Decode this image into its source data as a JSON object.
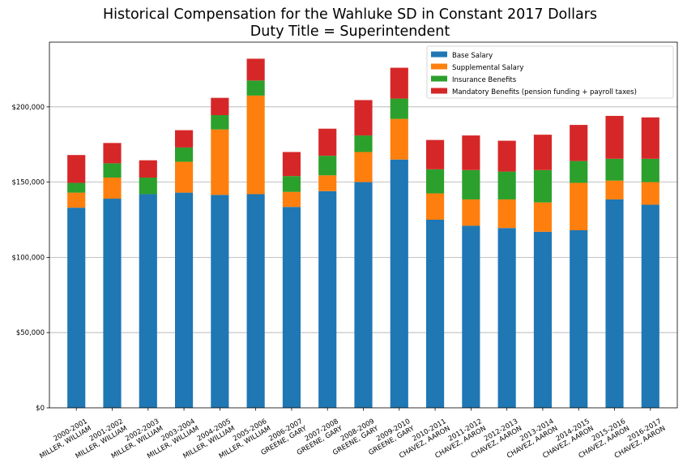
{
  "chart_data": {
    "type": "bar",
    "stacked": true,
    "title": "Historical Compensation for the Wahluke SD in Constant 2017 Dollars",
    "subtitle": "Duty Title = Superintendent",
    "xlabel": "",
    "ylabel": "",
    "ylim": [
      0,
      243000
    ],
    "yticks": [
      0,
      50000,
      100000,
      150000,
      200000
    ],
    "ytick_labels": [
      "$0",
      "$50,000",
      "$100,000",
      "$150,000",
      "$200,000"
    ],
    "grid": "horizontal",
    "legend_position": "top-right",
    "categories": [
      {
        "year": "2000-2001",
        "name": "MILLER, WILLIAM"
      },
      {
        "year": "2001-2002",
        "name": "MILLER, WILLIAM"
      },
      {
        "year": "2002-2003",
        "name": "MILLER, WILLIAM"
      },
      {
        "year": "2003-2004",
        "name": "MILLER, WILLIAM"
      },
      {
        "year": "2004-2005",
        "name": "MILLER, WILLIAM"
      },
      {
        "year": "2005-2006",
        "name": "MILLER, WILLIAM"
      },
      {
        "year": "2006-2007",
        "name": "GREENE, GARY"
      },
      {
        "year": "2007-2008",
        "name": "GREENE, GARY"
      },
      {
        "year": "2008-2009",
        "name": "GREENE, GARY"
      },
      {
        "year": "2009-2010",
        "name": "GREENE, GARY"
      },
      {
        "year": "2010-2011",
        "name": "CHAVEZ, AARON"
      },
      {
        "year": "2011-2012",
        "name": "CHAVEZ, AARON"
      },
      {
        "year": "2012-2013",
        "name": "CHAVEZ, AARON"
      },
      {
        "year": "2013-2014",
        "name": "CHAVEZ, AARON"
      },
      {
        "year": "2014-2015",
        "name": "CHAVEZ, AARON"
      },
      {
        "year": "2015-2016",
        "name": "CHAVEZ, AARON"
      },
      {
        "year": "2016-2017",
        "name": "CHAVEZ, AARON"
      }
    ],
    "series": [
      {
        "name": "Base Salary",
        "color": "#1f77b4",
        "values": [
          133000,
          139000,
          142000,
          143000,
          141500,
          142000,
          133500,
          144000,
          150000,
          165000,
          125000,
          121000,
          119500,
          117000,
          118000,
          138500,
          135000
        ]
      },
      {
        "name": "Supplemental Salary",
        "color": "#ff7f0e",
        "values": [
          10000,
          14000,
          0,
          20500,
          43500,
          65500,
          10000,
          10500,
          20000,
          27000,
          17500,
          17500,
          19000,
          19500,
          31500,
          12500,
          15000
        ]
      },
      {
        "name": "Insurance Benefits",
        "color": "#2ca02c",
        "values": [
          6500,
          9500,
          11000,
          9500,
          9500,
          10000,
          10500,
          13000,
          11000,
          13500,
          16000,
          19500,
          18500,
          21500,
          14500,
          14500,
          15500
        ]
      },
      {
        "name": "Mandatory Benefits (pension funding + payroll taxes)",
        "color": "#d62728",
        "values": [
          18500,
          13500,
          11500,
          11500,
          11500,
          14500,
          16000,
          18000,
          23500,
          20500,
          19500,
          23000,
          20500,
          23500,
          24000,
          28500,
          27500
        ]
      }
    ]
  }
}
